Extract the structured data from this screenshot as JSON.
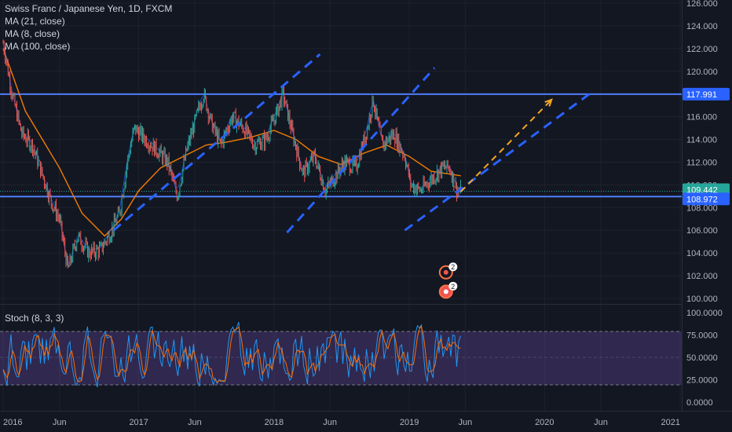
{
  "chart_data": [
    {
      "type": "candlestick",
      "title": "Swiss Franc / Japanese Yen, 1D, FXCM",
      "indicators": [
        "MA (21, close)",
        "MA (8, close)",
        "MA (100, close)"
      ],
      "x_ticks": [
        "2016",
        "Jun",
        "2017",
        "Jun",
        "2018",
        "Jun",
        "2019",
        "Jun",
        "2020",
        "Jun",
        "2021"
      ],
      "y_ticks": [
        "100.000",
        "102.000",
        "104.000",
        "106.000",
        "108.000",
        "110.000",
        "112.000",
        "114.000",
        "116.000",
        "118.000",
        "120.000",
        "122.000",
        "124.000",
        "126.000"
      ],
      "ylim": [
        100,
        126
      ],
      "price_tags": [
        {
          "label": "117.991",
          "value": 117.991,
          "color": "#2962ff"
        },
        {
          "label": "109.442",
          "value": 109.442,
          "color": "#26a69a"
        },
        {
          "label": "108.972",
          "value": 108.972,
          "color": "#2962ff"
        }
      ],
      "horizontal_levels": [
        117.991,
        108.972
      ],
      "close_price": 109.442,
      "price_path": [
        [
          "2016-01-01",
          122.5
        ],
        [
          "2016-01-25",
          118.0
        ],
        [
          "2016-02-20",
          114.5
        ],
        [
          "2016-03-20",
          113.5
        ],
        [
          "2016-04-20",
          110.5
        ],
        [
          "2016-05-10",
          108.5
        ],
        [
          "2016-06-01",
          107.0
        ],
        [
          "2016-06-24",
          102.5
        ],
        [
          "2016-07-20",
          105.5
        ],
        [
          "2016-08-20",
          104.0
        ],
        [
          "2016-09-20",
          104.3
        ],
        [
          "2016-10-20",
          106.0
        ],
        [
          "2016-11-10",
          107.5
        ],
        [
          "2016-12-01",
          112.0
        ],
        [
          "2016-12-20",
          115.0
        ],
        [
          "2017-01-20",
          114.0
        ],
        [
          "2017-02-20",
          113.0
        ],
        [
          "2017-03-20",
          112.0
        ],
        [
          "2017-04-15",
          109.0
        ],
        [
          "2017-05-10",
          113.0
        ],
        [
          "2017-06-10",
          116.5
        ],
        [
          "2017-06-25",
          118.0
        ],
        [
          "2017-07-15",
          115.5
        ],
        [
          "2017-08-10",
          113.5
        ],
        [
          "2017-09-10",
          116.0
        ],
        [
          "2017-10-10",
          115.0
        ],
        [
          "2017-11-10",
          113.5
        ],
        [
          "2017-12-10",
          114.0
        ],
        [
          "2018-01-10",
          116.5
        ],
        [
          "2018-01-25",
          118.0
        ],
        [
          "2018-02-20",
          114.5
        ],
        [
          "2018-03-20",
          111.0
        ],
        [
          "2018-04-20",
          112.5
        ],
        [
          "2018-05-20",
          109.5
        ],
        [
          "2018-06-10",
          110.5
        ],
        [
          "2018-07-10",
          112.0
        ],
        [
          "2018-08-10",
          111.5
        ],
        [
          "2018-09-10",
          115.0
        ],
        [
          "2018-09-25",
          117.5
        ],
        [
          "2018-10-20",
          113.5
        ],
        [
          "2018-11-20",
          114.5
        ],
        [
          "2018-12-20",
          112.5
        ],
        [
          "2019-01-05",
          110.0
        ],
        [
          "2019-02-01",
          109.5
        ],
        [
          "2019-03-01",
          110.5
        ],
        [
          "2019-04-01",
          111.5
        ],
        [
          "2019-04-20",
          111.5
        ],
        [
          "2019-05-10",
          109.5
        ],
        [
          "2019-05-20",
          109.4
        ]
      ],
      "ma_path": [
        [
          "2016-01-01",
          122.0
        ],
        [
          "2016-03-01",
          116.5
        ],
        [
          "2016-06-01",
          111.5
        ],
        [
          "2016-08-01",
          107.5
        ],
        [
          "2016-10-01",
          105.5
        ],
        [
          "2016-11-15",
          107.0
        ],
        [
          "2017-01-01",
          109.5
        ],
        [
          "2017-03-01",
          111.5
        ],
        [
          "2017-05-01",
          112.5
        ],
        [
          "2017-07-01",
          113.5
        ],
        [
          "2017-09-01",
          113.8
        ],
        [
          "2017-11-01",
          114.2
        ],
        [
          "2018-01-01",
          114.8
        ],
        [
          "2018-03-01",
          114.0
        ],
        [
          "2018-05-01",
          112.5
        ],
        [
          "2018-07-01",
          111.8
        ],
        [
          "2018-09-01",
          112.8
        ],
        [
          "2018-11-01",
          113.5
        ],
        [
          "2019-01-01",
          112.5
        ],
        [
          "2019-03-01",
          111.2
        ],
        [
          "2019-05-20",
          110.8
        ]
      ],
      "trend_lines": [
        {
          "from": [
            "2016-10-25",
            106.0
          ],
          "to": [
            "2018-05-05",
            121.5
          ],
          "color": "#2962ff",
          "style": "dashed"
        },
        {
          "from": [
            "2018-02-05",
            105.8
          ],
          "to": [
            "2019-03-10",
            120.3
          ],
          "color": "#2962ff",
          "style": "dashed"
        },
        {
          "from": [
            "2018-12-20",
            106.0
          ],
          "to": [
            "2020-05-01",
            118.0
          ],
          "color": "#2962ff",
          "style": "dashed"
        },
        {
          "from": [
            "2019-05-20",
            109.4
          ],
          "to": [
            "2020-01-20",
            117.5
          ],
          "color": "#f5a623",
          "style": "dashed"
        }
      ],
      "event_markers": [
        {
          "count": "2",
          "value": 102.3
        },
        {
          "count": "2",
          "value": 100.6
        }
      ]
    },
    {
      "type": "line",
      "title": "Stoch (8, 3, 3)",
      "y_ticks": [
        "0.0000",
        "25.0000",
        "50.0000",
        "75.0000",
        "100.0000"
      ],
      "ylim": [
        0,
        100
      ],
      "bands": [
        20,
        80
      ],
      "series": [
        {
          "name": "%K"
        },
        {
          "name": "%D"
        }
      ]
    }
  ]
}
